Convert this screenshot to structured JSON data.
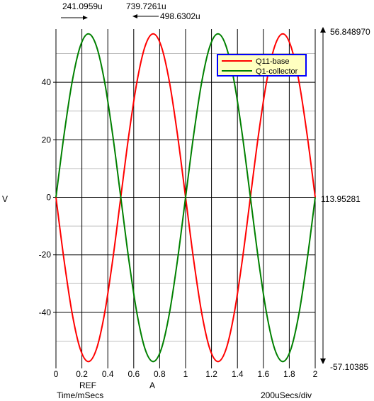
{
  "cursor_readouts": {
    "ref_time": "241.0959u",
    "a_time": "739.7261u",
    "delta_time": "498.6302u",
    "max_value": "56.848970",
    "mid_value": "113.95281",
    "min_value": "-57.10385"
  },
  "cursor_labels": {
    "ref": "REF",
    "a": "A"
  },
  "axes": {
    "y_label": "V",
    "x_label": "Time/mSecs",
    "x_scale": "200uSecs/div"
  },
  "colors": {
    "q11_base": "#ff0000",
    "q1_collector": "#008000",
    "legend_bg": "#ffffc0",
    "legend_border": "#0000ff",
    "grid_major": "#000000",
    "grid_minor": "#c0c0c0"
  },
  "chart_data": {
    "type": "line",
    "x_unit": "mSecs",
    "y_unit": "V",
    "xlim": [
      0,
      2
    ],
    "ylim": [
      -58.5,
      58.5
    ],
    "x_ticks": [
      0,
      0.2,
      0.4,
      0.6,
      0.8,
      1,
      1.2,
      1.4,
      1.6,
      1.8,
      2
    ],
    "x_tick_labels": [
      "0",
      "0.2",
      "0.4",
      "0.6",
      "0.8",
      "1",
      "1.2",
      "1.4",
      "1.6",
      "1.8",
      "2"
    ],
    "y_ticks": [
      -40,
      -20,
      0,
      20,
      40
    ],
    "y_tick_labels": [
      "-40",
      "-20",
      "0",
      "20",
      "40"
    ],
    "y_minor_ticks": [
      -50,
      -30,
      -10,
      10,
      30,
      50
    ],
    "grid": true,
    "legend_position": "top-right",
    "series": [
      {
        "name": "Q11-base",
        "color": "#ff0000",
        "x": [
          0,
          0.0625,
          0.125,
          0.1875,
          0.25,
          0.3125,
          0.375,
          0.4375,
          0.5,
          0.5625,
          0.625,
          0.6875,
          0.75,
          0.8125,
          0.875,
          0.9375,
          1,
          1.0625,
          1.125,
          1.1875,
          1.25,
          1.3125,
          1.375,
          1.4375,
          1.5,
          1.5625,
          1.625,
          1.6875,
          1.75,
          1.8125,
          1.875,
          1.9375,
          2
        ],
        "y": [
          0,
          -21.85,
          -40.38,
          -52.76,
          -57.1,
          -52.76,
          -40.38,
          -21.85,
          0,
          21.76,
          40.2,
          52.52,
          56.85,
          52.52,
          40.2,
          21.76,
          0,
          -21.85,
          -40.38,
          -52.76,
          -57.1,
          -52.76,
          -40.38,
          -21.85,
          0,
          21.76,
          40.2,
          52.52,
          56.85,
          52.52,
          40.2,
          21.76,
          0
        ]
      },
      {
        "name": "Q1-collector",
        "color": "#008000",
        "x": [
          0,
          0.0625,
          0.125,
          0.1875,
          0.25,
          0.3125,
          0.375,
          0.4375,
          0.5,
          0.5625,
          0.625,
          0.6875,
          0.75,
          0.8125,
          0.875,
          0.9375,
          1,
          1.0625,
          1.125,
          1.1875,
          1.25,
          1.3125,
          1.375,
          1.4375,
          1.5,
          1.5625,
          1.625,
          1.6875,
          1.75,
          1.8125,
          1.875,
          1.9375,
          2
        ],
        "y": [
          0,
          21.76,
          40.2,
          52.52,
          56.85,
          52.52,
          40.2,
          21.76,
          0,
          -21.85,
          -40.38,
          -52.76,
          -57.1,
          -52.76,
          -40.38,
          -21.85,
          0,
          21.76,
          40.2,
          52.52,
          56.85,
          52.52,
          40.2,
          21.76,
          0,
          -21.85,
          -40.38,
          -52.76,
          -57.1,
          -52.76,
          -40.38,
          -21.85,
          0
        ]
      }
    ]
  }
}
